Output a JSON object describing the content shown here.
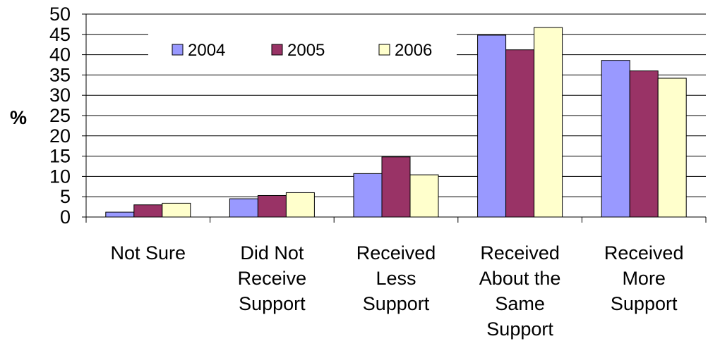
{
  "chart_data": {
    "type": "bar",
    "title": "",
    "xlabel": "",
    "ylabel": "%",
    "ylim": [
      0,
      50
    ],
    "yticks": [
      0,
      5,
      10,
      15,
      20,
      25,
      30,
      35,
      40,
      45,
      50
    ],
    "grid": true,
    "legend_position": "top",
    "categories": [
      [
        "Not Sure"
      ],
      [
        "Did Not",
        "Receive",
        "Support"
      ],
      [
        "Received",
        "Less",
        "Support"
      ],
      [
        "Received",
        "About the",
        "Same",
        "Support"
      ],
      [
        "Received",
        "More",
        "Support"
      ]
    ],
    "series": [
      {
        "name": "2004",
        "color": "#9999FF",
        "values": [
          1.2,
          4.5,
          10.7,
          44.8,
          38.6
        ]
      },
      {
        "name": "2005",
        "color": "#993366",
        "values": [
          3.0,
          5.3,
          14.8,
          41.2,
          36.0
        ]
      },
      {
        "name": "2006",
        "color": "#FFFFCC",
        "values": [
          3.4,
          6.0,
          10.4,
          46.7,
          34.2
        ]
      }
    ]
  }
}
